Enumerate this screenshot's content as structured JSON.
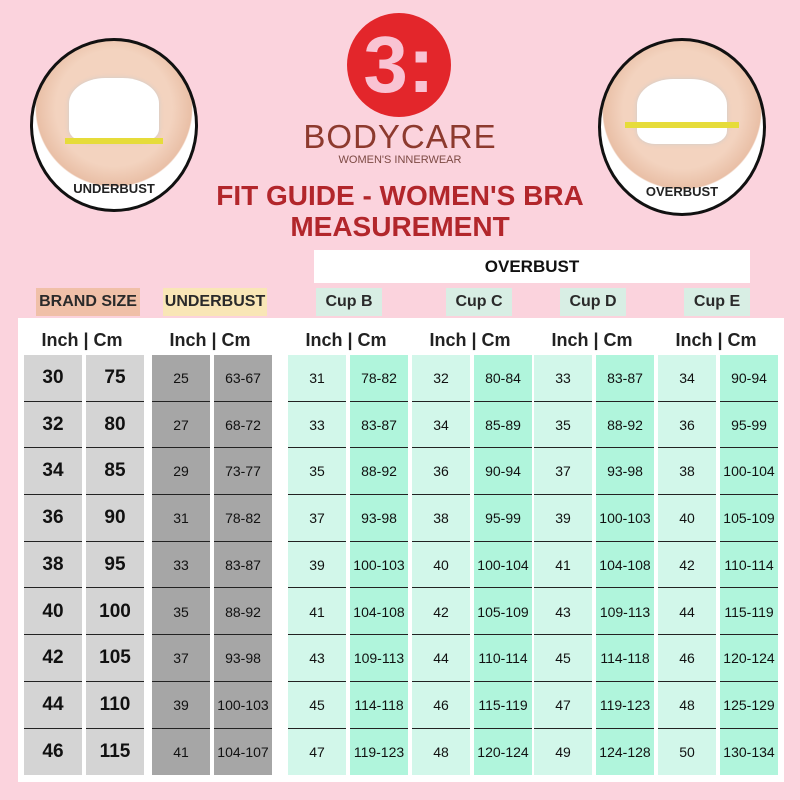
{
  "brand": {
    "name": "BODYCARE",
    "tagline": "WOMEN'S INNERWEAR",
    "logo_text": "3:"
  },
  "title": {
    "line1": "FIT GUIDE - WOMEN'S BRA",
    "line2": "MEASUREMENT"
  },
  "photos": {
    "left_label": "UNDERBUST",
    "right_label": "OVERBUST"
  },
  "overbust_label": "OVERBUST",
  "groups": [
    "BRAND SIZE",
    "UNDERBUST",
    "Cup B",
    "Cup C",
    "Cup D",
    "Cup E"
  ],
  "unit_header": "Inch | Cm",
  "columns": [
    {
      "inch": [
        "30",
        "32",
        "34",
        "36",
        "38",
        "40",
        "42",
        "44",
        "46"
      ],
      "cm": [
        "75",
        "80",
        "85",
        "90",
        "95",
        "100",
        "105",
        "110",
        "115"
      ]
    },
    {
      "inch": [
        "25",
        "27",
        "29",
        "31",
        "33",
        "35",
        "37",
        "39",
        "41"
      ],
      "cm": [
        "63-67",
        "68-72",
        "73-77",
        "78-82",
        "83-87",
        "88-92",
        "93-98",
        "100-103",
        "104-107"
      ]
    },
    {
      "inch": [
        "31",
        "33",
        "35",
        "37",
        "39",
        "41",
        "43",
        "45",
        "47"
      ],
      "cm": [
        "78-82",
        "83-87",
        "88-92",
        "93-98",
        "100-103",
        "104-108",
        "109-113",
        "114-118",
        "119-123"
      ]
    },
    {
      "inch": [
        "32",
        "34",
        "36",
        "38",
        "40",
        "42",
        "44",
        "46",
        "48"
      ],
      "cm": [
        "80-84",
        "85-89",
        "90-94",
        "95-99",
        "100-104",
        "105-109",
        "110-114",
        "115-119",
        "120-124"
      ]
    },
    {
      "inch": [
        "33",
        "35",
        "37",
        "39",
        "41",
        "43",
        "45",
        "47",
        "49"
      ],
      "cm": [
        "83-87",
        "88-92",
        "93-98",
        "100-103",
        "104-108",
        "109-113",
        "114-118",
        "119-123",
        "124-128"
      ]
    },
    {
      "inch": [
        "34",
        "36",
        "38",
        "40",
        "42",
        "44",
        "46",
        "48",
        "50"
      ],
      "cm": [
        "90-94",
        "95-99",
        "100-104",
        "105-109",
        "110-114",
        "115-119",
        "120-124",
        "125-129",
        "130-134"
      ]
    }
  ],
  "colors": {
    "background": "#fbd3dd",
    "logo": "#e3262b",
    "title": "#b2262b",
    "brand_size_tag": "#f0c0a8",
    "underbust_tag": "#f9e6b6",
    "cup_tag": "#d8eee4",
    "mint": "#b0f5dc",
    "mint_light": "#d2f7ea",
    "gray": "#d4d4d4",
    "dark_gray": "#a6a6a6"
  }
}
